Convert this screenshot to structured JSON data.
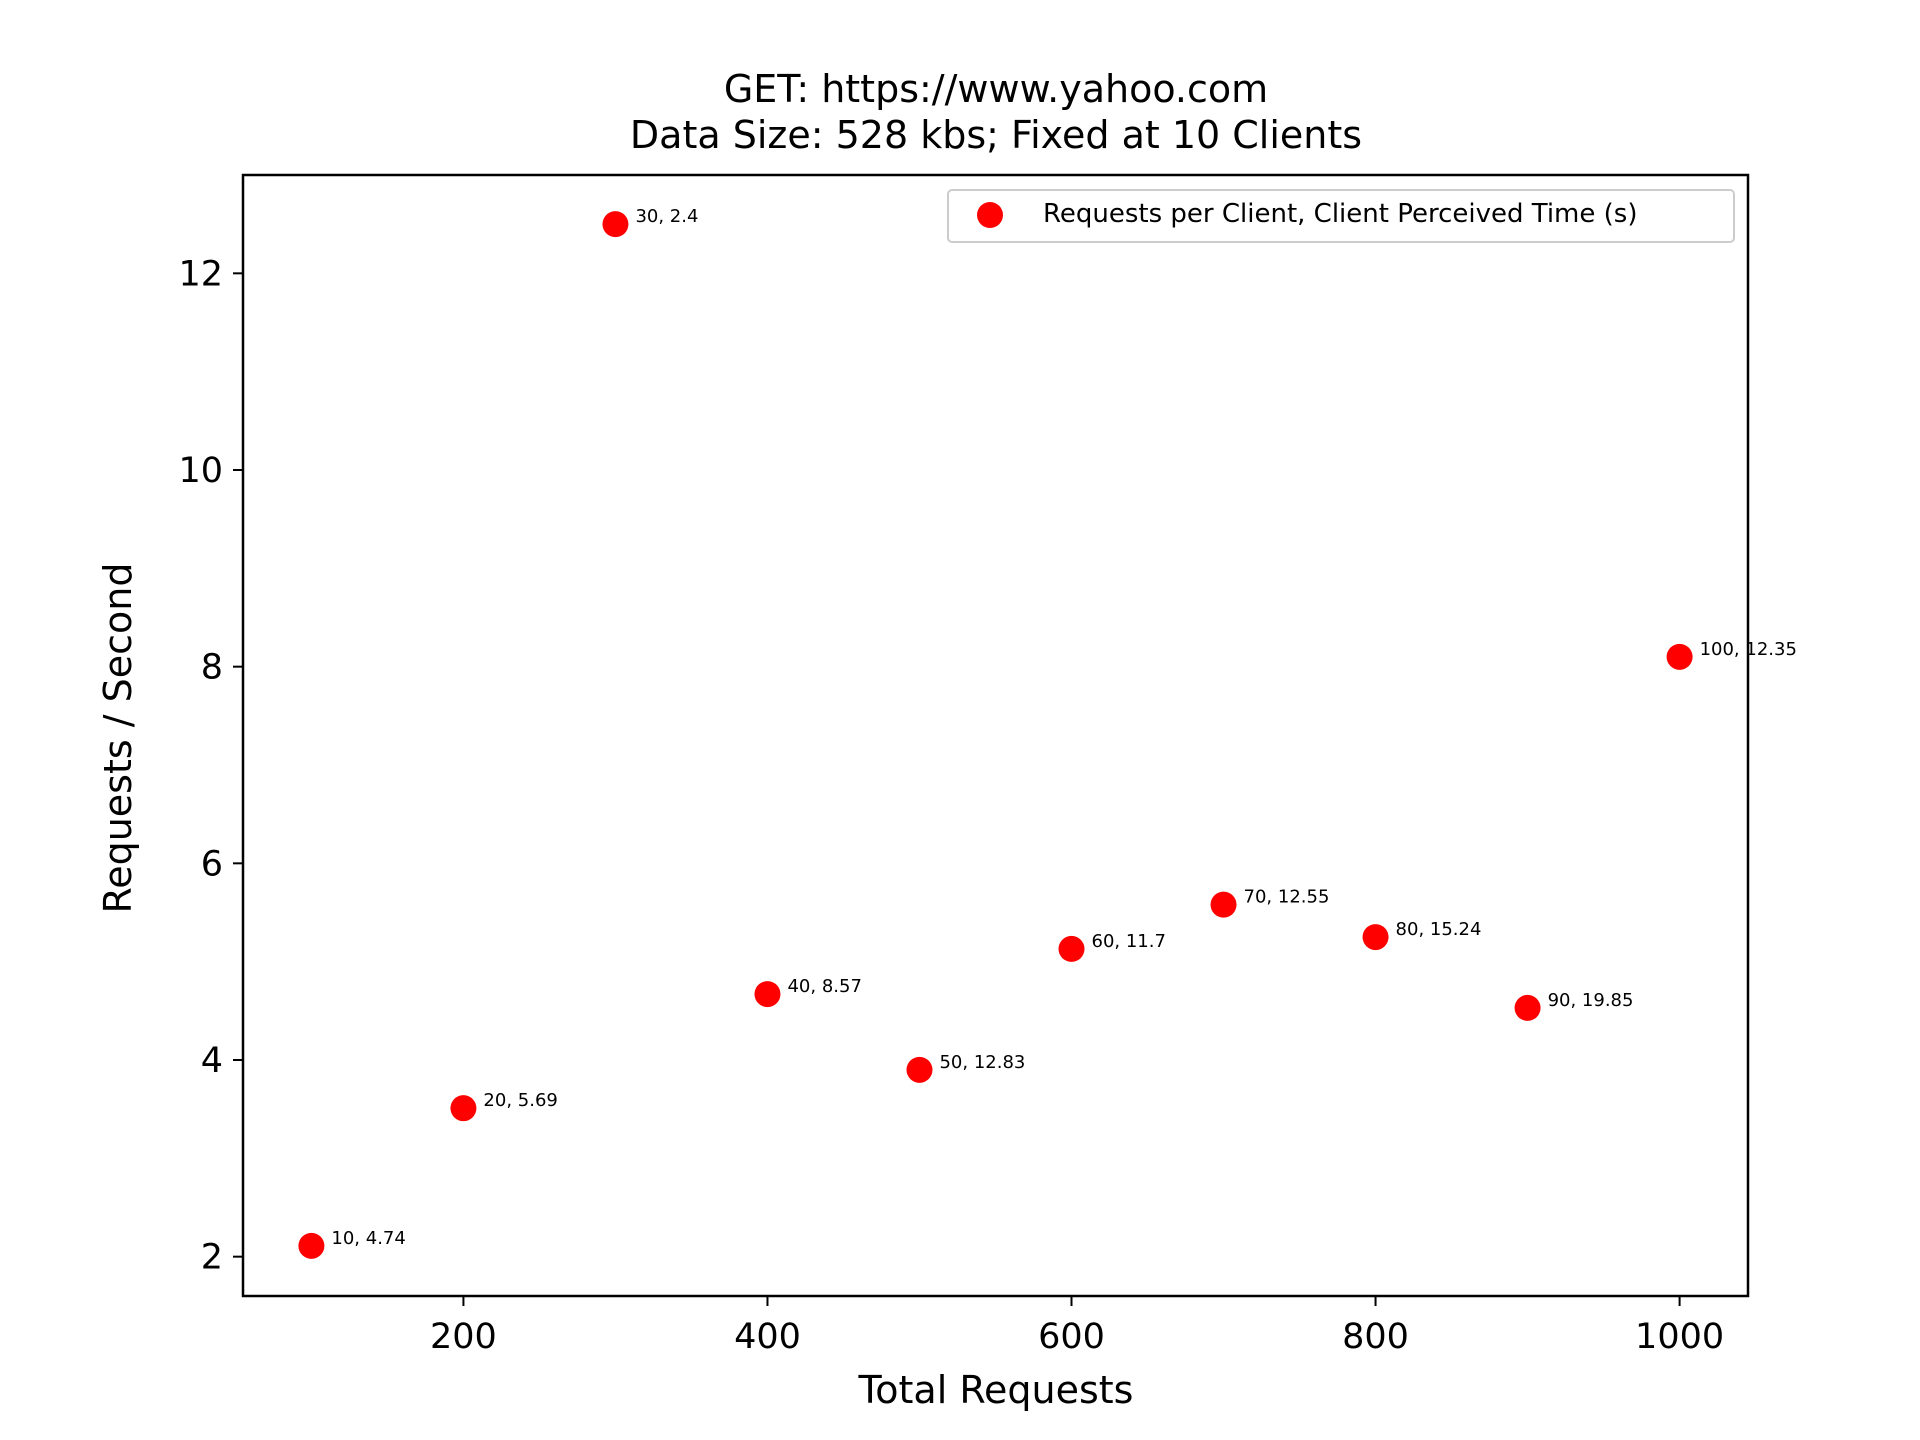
{
  "chart_data": {
    "type": "scatter",
    "title": "GET: https://www.yahoo.com",
    "subtitle": "Data Size: 528 kbs; Fixed at 10 Clients",
    "xlabel": "Total Requests",
    "ylabel": "Requests / Second",
    "xlim": [
      55,
      1045
    ],
    "ylim": [
      1.6,
      13.0
    ],
    "xticks": [
      200,
      400,
      600,
      800,
      1000
    ],
    "yticks": [
      2,
      4,
      6,
      8,
      10,
      12
    ],
    "grid": false,
    "legend_position": "top-right",
    "series": [
      {
        "name": "Requests per Client, Client Perceived Time (s)",
        "color": "#ff0000",
        "points": [
          {
            "x": 100,
            "y": 2.11,
            "label": "10, 4.74"
          },
          {
            "x": 200,
            "y": 3.51,
            "label": "20, 5.69"
          },
          {
            "x": 300,
            "y": 12.5,
            "label": "30, 2.4"
          },
          {
            "x": 400,
            "y": 4.67,
            "label": "40, 8.57"
          },
          {
            "x": 500,
            "y": 3.9,
            "label": "50, 12.83"
          },
          {
            "x": 600,
            "y": 5.13,
            "label": "60, 11.7"
          },
          {
            "x": 700,
            "y": 5.58,
            "label": "70, 12.55"
          },
          {
            "x": 800,
            "y": 5.25,
            "label": "80, 15.24"
          },
          {
            "x": 900,
            "y": 4.53,
            "label": "90, 19.85"
          },
          {
            "x": 1000,
            "y": 8.1,
            "label": "100, 12.35"
          }
        ]
      }
    ]
  }
}
